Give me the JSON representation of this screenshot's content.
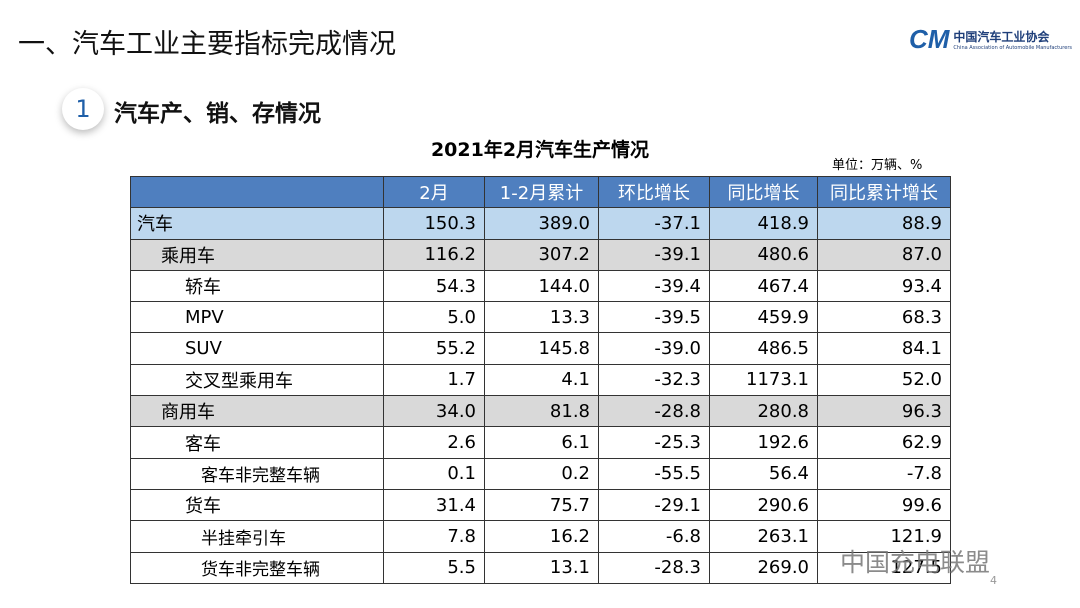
{
  "header": {
    "title": "一、汽车工业主要指标完成情况",
    "logo": {
      "mark": "CM",
      "name": "中国汽车工业协会",
      "english": "China Association of Automobile Manufacturers"
    }
  },
  "section": {
    "number": "1",
    "title": "汽车产、销、存情况"
  },
  "table": {
    "title": "2021年2月汽车生产情况",
    "unit": "单位：万辆、%",
    "columns": [
      "",
      "2月",
      "1-2月累计",
      "环比增长",
      "同比增长",
      "同比累计增长"
    ],
    "rows": [
      [
        "汽车",
        "150.3",
        "389.0",
        "-37.1",
        "418.9",
        "88.9"
      ],
      [
        "乘用车",
        "116.2",
        "307.2",
        "-39.1",
        "480.6",
        "87.0"
      ],
      [
        "轿车",
        "54.3",
        "144.0",
        "-39.4",
        "467.4",
        "93.4"
      ],
      [
        "MPV",
        "5.0",
        "13.3",
        "-39.5",
        "459.9",
        "68.3"
      ],
      [
        "SUV",
        "55.2",
        "145.8",
        "-39.0",
        "486.5",
        "84.1"
      ],
      [
        "交叉型乘用车",
        "1.7",
        "4.1",
        "-32.3",
        "1173.1",
        "52.0"
      ],
      [
        "商用车",
        "34.0",
        "81.8",
        "-28.8",
        "280.8",
        "96.3"
      ],
      [
        "客车",
        "2.6",
        "6.1",
        "-25.3",
        "192.6",
        "62.9"
      ],
      [
        "客车非完整车辆",
        "0.1",
        "0.2",
        "-55.5",
        "56.4",
        "-7.8"
      ],
      [
        "货车",
        "31.4",
        "75.7",
        "-29.1",
        "290.6",
        "99.6"
      ],
      [
        "半挂牵引车",
        "7.8",
        "16.2",
        "-6.8",
        "263.1",
        "121.9"
      ],
      [
        "货车非完整车辆",
        "5.5",
        "13.1",
        "-28.3",
        "269.0",
        "127.5"
      ]
    ]
  },
  "watermark": "中国充电联盟",
  "page_number": "4"
}
